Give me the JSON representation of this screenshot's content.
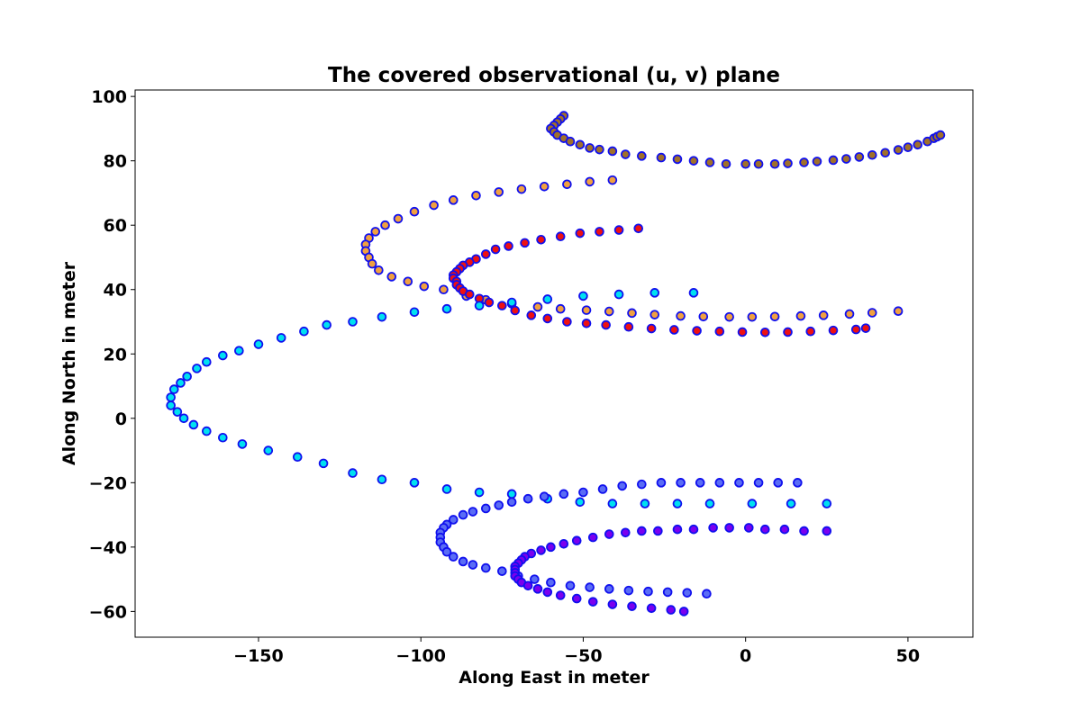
{
  "chart_data": {
    "type": "scatter",
    "title": "The covered observational (u, v) plane",
    "xlabel": "Along East in meter",
    "ylabel": "Along North in meter",
    "xlim": [
      -188,
      70
    ],
    "ylim": [
      -68,
      102
    ],
    "xticks": [
      -150,
      -100,
      -50,
      0,
      50
    ],
    "yticks": [
      -60,
      -40,
      -20,
      0,
      20,
      40,
      60,
      80,
      100
    ],
    "xtick_labels": [
      "−150",
      "−100",
      "−50",
      "0",
      "50"
    ],
    "ytick_labels": [
      "−60",
      "−40",
      "−20",
      "0",
      "20",
      "40",
      "60",
      "80",
      "100"
    ],
    "grid": false,
    "marker_edge_color": "#1010ee",
    "series": [
      {
        "color": "#a0702a",
        "points": [
          [
            -56,
            94
          ],
          [
            -57,
            93
          ],
          [
            -58,
            92
          ],
          [
            -59,
            91
          ],
          [
            -60,
            90
          ],
          [
            -59,
            89
          ],
          [
            -58,
            88
          ],
          [
            -56,
            87
          ],
          [
            -54,
            86
          ],
          [
            -51,
            85
          ],
          [
            -48,
            84
          ],
          [
            -45,
            83.5
          ],
          [
            -41,
            83
          ],
          [
            -37,
            82
          ],
          [
            -32,
            81.5
          ],
          [
            -26,
            81
          ],
          [
            -21,
            80.5
          ],
          [
            -16,
            80
          ],
          [
            -11,
            79.5
          ],
          [
            -6,
            79
          ],
          [
            0,
            79
          ],
          [
            4,
            79
          ],
          [
            9,
            79
          ],
          [
            13,
            79.2
          ],
          [
            18,
            79.5
          ],
          [
            22,
            79.8
          ],
          [
            27,
            80.2
          ],
          [
            31,
            80.6
          ],
          [
            35,
            81.2
          ],
          [
            39,
            81.8
          ],
          [
            43,
            82.5
          ],
          [
            47,
            83.4
          ],
          [
            50,
            84.2
          ],
          [
            53,
            85
          ],
          [
            56,
            86
          ],
          [
            58,
            87
          ],
          [
            59,
            87.5
          ],
          [
            60,
            88
          ]
        ]
      },
      {
        "color": "#f0a040",
        "points": [
          [
            -41,
            74
          ],
          [
            -48,
            73.5
          ],
          [
            -55,
            72.7
          ],
          [
            -62,
            72
          ],
          [
            -69,
            71.2
          ],
          [
            -76,
            70.3
          ],
          [
            -83,
            69.2
          ],
          [
            -90,
            67.8
          ],
          [
            -96,
            66.2
          ],
          [
            -102,
            64.2
          ],
          [
            -107,
            62
          ],
          [
            -111,
            60
          ],
          [
            -114,
            58
          ],
          [
            -116,
            56
          ],
          [
            -117,
            54
          ],
          [
            -117,
            52
          ],
          [
            -116,
            50
          ],
          [
            -115,
            48
          ],
          [
            -113,
            46
          ],
          [
            -109,
            44
          ],
          [
            -104,
            42.5
          ],
          [
            -99,
            41
          ],
          [
            -93,
            40
          ],
          [
            -86,
            38
          ],
          [
            -80,
            36.8
          ],
          [
            -72,
            35.6
          ],
          [
            -64,
            34.6
          ],
          [
            -57,
            34
          ],
          [
            -49,
            33.6
          ],
          [
            -42,
            33.2
          ],
          [
            -35,
            32.7
          ],
          [
            -28,
            32.2
          ],
          [
            -20,
            31.8
          ],
          [
            -13,
            31.6
          ],
          [
            -5,
            31.5
          ],
          [
            2,
            31.5
          ],
          [
            9,
            31.6
          ],
          [
            17,
            31.8
          ],
          [
            24,
            32
          ],
          [
            32,
            32.4
          ],
          [
            39,
            32.8
          ],
          [
            47,
            33.3
          ]
        ]
      },
      {
        "color": "#ee1111",
        "points": [
          [
            -33,
            59
          ],
          [
            -39,
            58.5
          ],
          [
            -45,
            58
          ],
          [
            -51,
            57.5
          ],
          [
            -57,
            56.5
          ],
          [
            -63,
            55.5
          ],
          [
            -68,
            54.5
          ],
          [
            -73,
            53.5
          ],
          [
            -77,
            52.5
          ],
          [
            -80,
            51
          ],
          [
            -83,
            49.5
          ],
          [
            -85,
            48.5
          ],
          [
            -87,
            47.5
          ],
          [
            -88,
            46.5
          ],
          [
            -89,
            45.5
          ],
          [
            -90,
            44.5
          ],
          [
            -90,
            43.5
          ],
          [
            -89,
            42.5
          ],
          [
            -89,
            41.5
          ],
          [
            -88,
            40.5
          ],
          [
            -87,
            39.5
          ],
          [
            -85,
            38.5
          ],
          [
            -82,
            37.2
          ],
          [
            -79,
            36
          ],
          [
            -75,
            35
          ],
          [
            -71,
            33.5
          ],
          [
            -66,
            32
          ],
          [
            -61,
            31
          ],
          [
            -55,
            30
          ],
          [
            -49,
            29.5
          ],
          [
            -43,
            29
          ],
          [
            -36,
            28.4
          ],
          [
            -29,
            27.9
          ],
          [
            -22,
            27.5
          ],
          [
            -15,
            27.2
          ],
          [
            -8,
            27
          ],
          [
            -1,
            26.8
          ],
          [
            6,
            26.7
          ],
          [
            13,
            26.8
          ],
          [
            20,
            27
          ],
          [
            27,
            27.3
          ],
          [
            34,
            27.6
          ],
          [
            37,
            28
          ]
        ]
      },
      {
        "color": "#00e0f0",
        "points": [
          [
            -16,
            39
          ],
          [
            -28,
            39
          ],
          [
            -39,
            38.5
          ],
          [
            -50,
            38
          ],
          [
            -61,
            37
          ],
          [
            -72,
            36
          ],
          [
            -82,
            35
          ],
          [
            -92,
            34
          ],
          [
            -102,
            33
          ],
          [
            -112,
            31.5
          ],
          [
            -121,
            30
          ],
          [
            -129,
            29
          ],
          [
            -136,
            27
          ],
          [
            -143,
            25
          ],
          [
            -150,
            23
          ],
          [
            -156,
            21
          ],
          [
            -161,
            19.5
          ],
          [
            -166,
            17.5
          ],
          [
            -169,
            15.5
          ],
          [
            -172,
            13
          ],
          [
            -174,
            11
          ],
          [
            -176,
            9
          ],
          [
            -177,
            6.5
          ],
          [
            -177,
            4
          ],
          [
            -175,
            2
          ],
          [
            -173,
            0
          ],
          [
            -170,
            -2
          ],
          [
            -166,
            -4
          ],
          [
            -161,
            -6
          ],
          [
            -155,
            -8
          ],
          [
            -147,
            -10
          ],
          [
            -138,
            -12
          ],
          [
            -130,
            -14
          ],
          [
            -121,
            -17
          ],
          [
            -112,
            -19
          ],
          [
            -102,
            -20
          ],
          [
            -92,
            -22
          ],
          [
            -82,
            -23
          ],
          [
            -72,
            -23.5
          ],
          [
            -61,
            -25
          ],
          [
            -51,
            -26
          ],
          [
            -41,
            -26.5
          ],
          [
            -31,
            -26.5
          ],
          [
            -21,
            -26.5
          ],
          [
            -11,
            -26.5
          ],
          [
            2,
            -26.5
          ],
          [
            14,
            -26.5
          ],
          [
            25,
            -26.5
          ]
        ]
      },
      {
        "color": "#5a6cf5",
        "points": [
          [
            16,
            -20
          ],
          [
            10,
            -20
          ],
          [
            4,
            -20
          ],
          [
            -2,
            -20
          ],
          [
            -8,
            -20
          ],
          [
            -14,
            -20
          ],
          [
            -20,
            -20
          ],
          [
            -26,
            -20
          ],
          [
            -32,
            -20.5
          ],
          [
            -38,
            -21
          ],
          [
            -44,
            -22
          ],
          [
            -50,
            -23
          ],
          [
            -56,
            -23.5
          ],
          [
            -62,
            -24.3
          ],
          [
            -67,
            -25
          ],
          [
            -72,
            -26
          ],
          [
            -76,
            -27
          ],
          [
            -80,
            -28
          ],
          [
            -84,
            -29
          ],
          [
            -87,
            -30
          ],
          [
            -90,
            -31.5
          ],
          [
            -92,
            -33
          ],
          [
            -93,
            -34
          ],
          [
            -94,
            -35.5
          ],
          [
            -94,
            -37
          ],
          [
            -94,
            -38.5
          ],
          [
            -93,
            -40
          ],
          [
            -92,
            -41.5
          ],
          [
            -90,
            -43
          ],
          [
            -87,
            -44.5
          ],
          [
            -84,
            -45.5
          ],
          [
            -80,
            -46.5
          ],
          [
            -75,
            -47.5
          ],
          [
            -70,
            -49
          ],
          [
            -65,
            -50
          ],
          [
            -60,
            -51
          ],
          [
            -54,
            -52
          ],
          [
            -48,
            -52.5
          ],
          [
            -42,
            -53
          ],
          [
            -36,
            -53.5
          ],
          [
            -30,
            -53.8
          ],
          [
            -24,
            -54
          ],
          [
            -18,
            -54.2
          ],
          [
            -12,
            -54.5
          ]
        ]
      },
      {
        "color": "#7a00ee",
        "points": [
          [
            25,
            -35
          ],
          [
            18,
            -35
          ],
          [
            12,
            -34.5
          ],
          [
            6,
            -34.5
          ],
          [
            1,
            -34
          ],
          [
            -5,
            -34
          ],
          [
            -10,
            -34
          ],
          [
            -16,
            -34.5
          ],
          [
            -21,
            -34.5
          ],
          [
            -27,
            -35
          ],
          [
            -32,
            -35
          ],
          [
            -37,
            -35.5
          ],
          [
            -42,
            -36
          ],
          [
            -47,
            -37
          ],
          [
            -52,
            -38
          ],
          [
            -56,
            -39
          ],
          [
            -60,
            -40
          ],
          [
            -63,
            -41
          ],
          [
            -66,
            -42
          ],
          [
            -68,
            -43
          ],
          [
            -69,
            -44
          ],
          [
            -70,
            -45
          ],
          [
            -71,
            -46
          ],
          [
            -71,
            -47
          ],
          [
            -71,
            -48
          ],
          [
            -71,
            -49
          ],
          [
            -70,
            -50
          ],
          [
            -69,
            -51
          ],
          [
            -67,
            -52
          ],
          [
            -64,
            -53
          ],
          [
            -61,
            -54
          ],
          [
            -57,
            -55
          ],
          [
            -52,
            -56
          ],
          [
            -47,
            -57
          ],
          [
            -41,
            -57.8
          ],
          [
            -35,
            -58.4
          ],
          [
            -29,
            -59
          ],
          [
            -23,
            -59.5
          ],
          [
            -19,
            -60
          ]
        ]
      }
    ]
  }
}
